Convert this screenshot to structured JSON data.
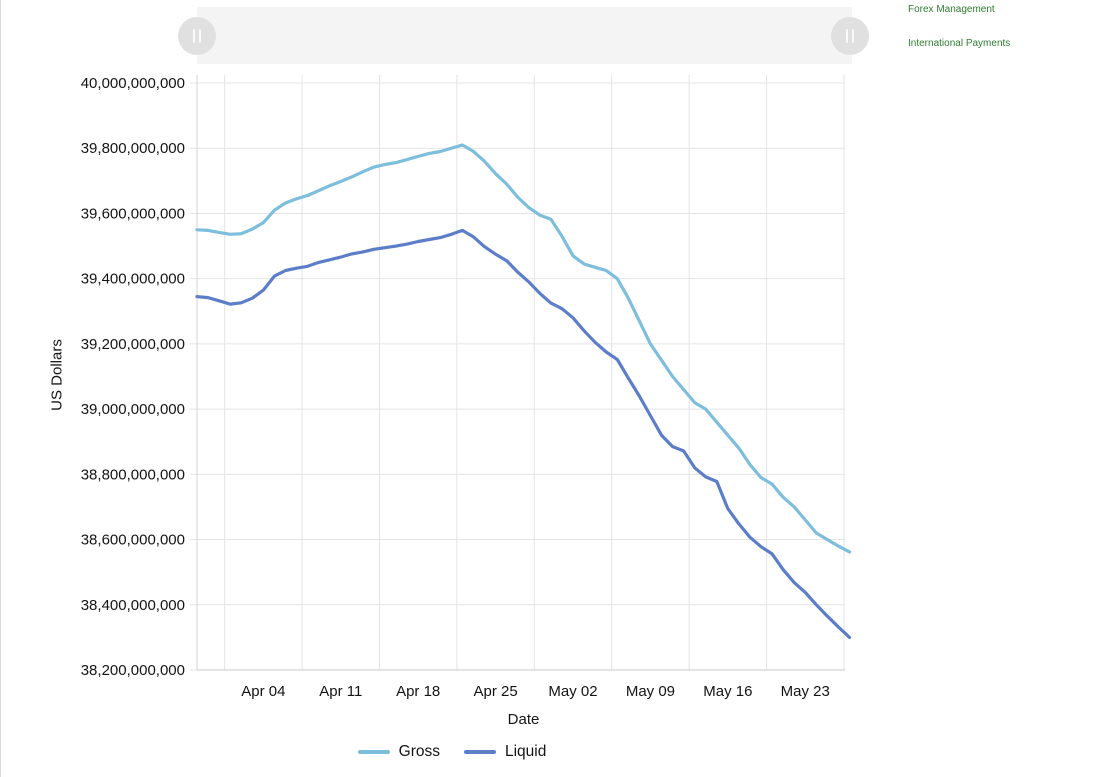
{
  "right_panel": {
    "link_color": "#2e7d32",
    "links": [
      {
        "label": "Forex Management"
      },
      {
        "label": "International Payments"
      }
    ]
  },
  "slider": {
    "handle_icon": "grip-pause-bars",
    "track_color": "#f4f4f4",
    "handle_color": "#e0e0e0"
  },
  "chart_data": {
    "type": "line",
    "title": "",
    "xlabel": "Date",
    "ylabel": "US Dollars",
    "values_unit": "billion USD",
    "y_unit_multiplier": 1000000000,
    "ylim": [
      38.2,
      40.0
    ],
    "grid": true,
    "legend_position": "bottom",
    "colors": {
      "grid": "#e4e4e4",
      "axis": "#c9c9c9",
      "text": "#141414"
    },
    "y_ticks": [
      {
        "label": "40,000,000,000",
        "value": 40.0
      },
      {
        "label": "39,800,000,000",
        "value": 39.8
      },
      {
        "label": "39,600,000,000",
        "value": 39.6
      },
      {
        "label": "39,400,000,000",
        "value": 39.4
      },
      {
        "label": "39,200,000,000",
        "value": 39.2
      },
      {
        "label": "39,000,000,000",
        "value": 39.0
      },
      {
        "label": "38,800,000,000",
        "value": 38.8
      },
      {
        "label": "38,600,000,000",
        "value": 38.6
      },
      {
        "label": "38,400,000,000",
        "value": 38.4
      },
      {
        "label": "38,200,000,000",
        "value": 38.2
      }
    ],
    "x_ticks": [
      {
        "label": "Apr 04",
        "day": 6
      },
      {
        "label": "Apr 11",
        "day": 13
      },
      {
        "label": "Apr 18",
        "day": 20
      },
      {
        "label": "Apr 25",
        "day": 27
      },
      {
        "label": "May 02",
        "day": 34
      },
      {
        "label": "May 09",
        "day": 41
      },
      {
        "label": "May 16",
        "day": 48
      },
      {
        "label": "May 23",
        "day": 55
      }
    ],
    "x": [
      "Mar 29",
      "Mar 30",
      "Mar 31",
      "Apr 01",
      "Apr 02",
      "Apr 03",
      "Apr 04",
      "Apr 05",
      "Apr 06",
      "Apr 07",
      "Apr 08",
      "Apr 09",
      "Apr 10",
      "Apr 11",
      "Apr 12",
      "Apr 13",
      "Apr 14",
      "Apr 15",
      "Apr 16",
      "Apr 17",
      "Apr 18",
      "Apr 19",
      "Apr 20",
      "Apr 21",
      "Apr 22",
      "Apr 23",
      "Apr 24",
      "Apr 25",
      "Apr 26",
      "Apr 27",
      "Apr 28",
      "Apr 29",
      "Apr 30",
      "May 01",
      "May 02",
      "May 03",
      "May 04",
      "May 05",
      "May 06",
      "May 07",
      "May 08",
      "May 09",
      "May 10",
      "May 11",
      "May 12",
      "May 13",
      "May 14",
      "May 15",
      "May 16",
      "May 17",
      "May 18",
      "May 19",
      "May 20",
      "May 21",
      "May 22",
      "May 23",
      "May 24",
      "May 25",
      "May 26",
      "May 27"
    ],
    "series": [
      {
        "name": "Gross",
        "color": "#7dbedd",
        "values": [
          39.55,
          39.548,
          39.542,
          39.536,
          39.538,
          39.552,
          39.572,
          39.61,
          39.632,
          39.645,
          39.655,
          39.67,
          39.685,
          39.698,
          39.712,
          39.728,
          39.742,
          39.75,
          39.756,
          39.765,
          39.775,
          39.784,
          39.79,
          39.8,
          39.81,
          39.79,
          39.76,
          39.722,
          39.69,
          39.65,
          39.618,
          39.595,
          39.582,
          39.53,
          39.47,
          39.445,
          39.435,
          39.425,
          39.4,
          39.34,
          39.27,
          39.2,
          39.15,
          39.1,
          39.06,
          39.02,
          39.0,
          38.96,
          38.92,
          38.88,
          38.83,
          38.79,
          38.77,
          38.73,
          38.7,
          38.66,
          38.62,
          38.6,
          38.58,
          38.562
        ]
      },
      {
        "name": "Liquid",
        "color": "#5c7ec9",
        "values": [
          39.345,
          39.342,
          39.332,
          39.322,
          39.326,
          39.34,
          39.365,
          39.408,
          39.425,
          39.432,
          39.438,
          39.45,
          39.458,
          39.466,
          39.476,
          39.482,
          39.49,
          39.495,
          39.5,
          39.506,
          39.514,
          39.52,
          39.526,
          39.536,
          39.548,
          39.528,
          39.498,
          39.475,
          39.455,
          39.42,
          39.39,
          39.355,
          39.325,
          39.308,
          39.28,
          39.24,
          39.205,
          39.175,
          39.152,
          39.095,
          39.04,
          38.98,
          38.92,
          38.885,
          38.872,
          38.82,
          38.792,
          38.778,
          38.695,
          38.648,
          38.607,
          38.578,
          38.556,
          38.508,
          38.468,
          38.438,
          38.4,
          38.365,
          38.332,
          38.3
        ]
      }
    ]
  }
}
